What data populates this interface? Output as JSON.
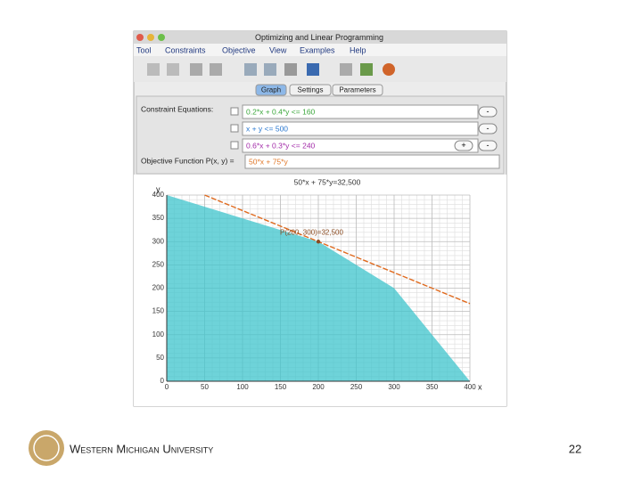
{
  "window": {
    "title": "Optimizing and Linear Programming",
    "menu": [
      "Tool",
      "Constraints",
      "Objective",
      "View",
      "Examples",
      "Help"
    ],
    "tabs": [
      "Graph",
      "Settings",
      "Parameters"
    ],
    "constraints_label": "Constraint Equations:",
    "constraints": [
      {
        "text": "0.2*x + 0.4*y <= 160",
        "color": "#3aa63a"
      },
      {
        "text": "x + y <= 500",
        "color": "#2a78d0"
      },
      {
        "text": "0.6*x + 0.3*y <= 240",
        "color": "#a22aa8"
      }
    ],
    "objective_label": "Objective Function P(x, y) =",
    "objective": {
      "text": "50*x + 75*y",
      "color": "#e0782a"
    },
    "buttons": {
      "minus": "-",
      "plus": "+"
    }
  },
  "graph": {
    "type": "area",
    "title": "50*x + 75*y=32,500",
    "x_label": "x",
    "y_label": "y",
    "xlim": [
      0,
      400
    ],
    "ylim": [
      0,
      400
    ],
    "xticks": [
      0,
      50,
      100,
      150,
      200,
      250,
      300,
      350,
      400
    ],
    "yticks": [
      0,
      50,
      100,
      150,
      200,
      250,
      300,
      350,
      400
    ],
    "grid": true,
    "region": {
      "x": [
        0,
        200,
        300,
        400
      ],
      "y": [
        400,
        300,
        200,
        0
      ],
      "color": "#3ec4cc"
    },
    "objective_line": {
      "x": [
        50,
        400
      ],
      "y": [
        400,
        166.7
      ],
      "color": "#e06a1e"
    },
    "point": {
      "x": 200,
      "y": 300,
      "label": "P(200, 300)=32,500",
      "color": "#8a4a20"
    }
  },
  "footer": {
    "university": "Western Michigan University",
    "page": "22"
  }
}
